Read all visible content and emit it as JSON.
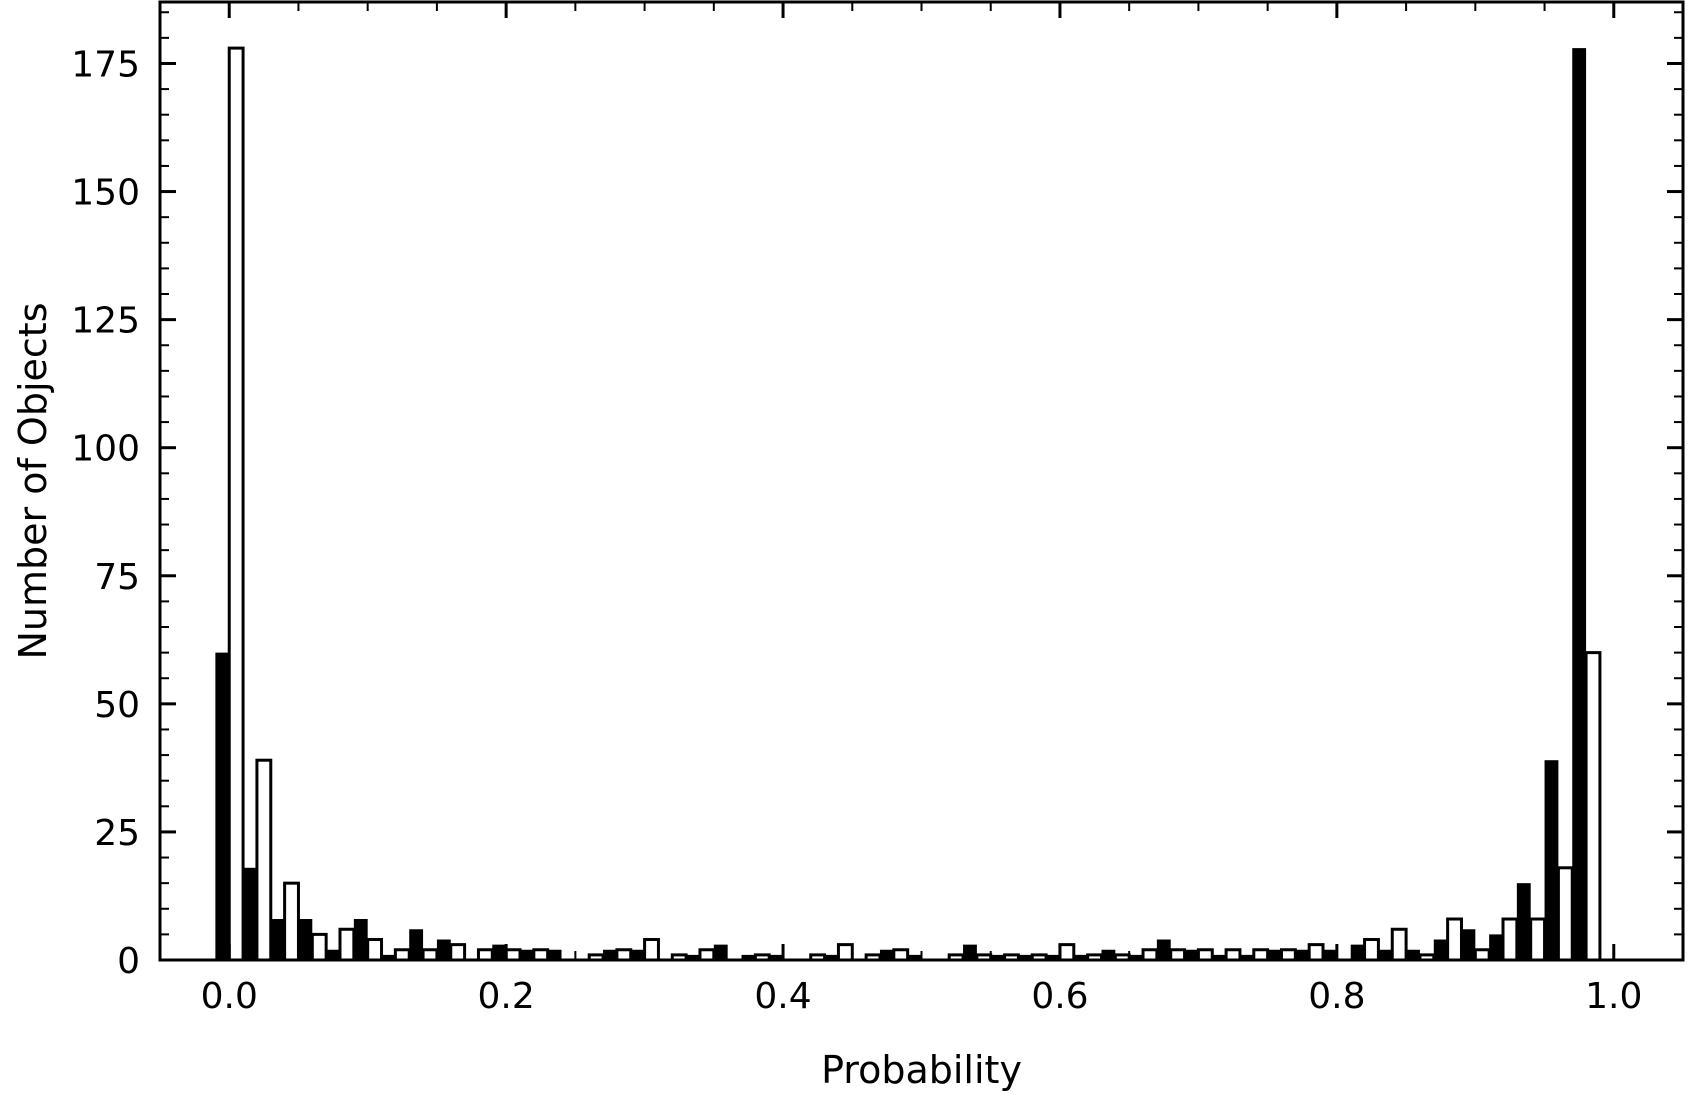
{
  "chart_data": {
    "type": "bar",
    "title": "",
    "xlabel": "Probability",
    "ylabel": "Number of Objects",
    "xlim": [
      -0.05,
      1.05
    ],
    "ylim": [
      0,
      187
    ],
    "bin_width": 0.02,
    "x_ticks": [
      0.0,
      0.2,
      0.4,
      0.6,
      0.8,
      1.0
    ],
    "x_tick_labels": [
      "0.0",
      "0.2",
      "0.4",
      "0.6",
      "0.8",
      "1.0"
    ],
    "y_ticks": [
      0,
      25,
      50,
      75,
      100,
      125,
      150,
      175
    ],
    "y_tick_labels": [
      "0",
      "25",
      "50",
      "75",
      "100",
      "125",
      "150",
      "175"
    ],
    "x": [
      0.0,
      0.02,
      0.04,
      0.06,
      0.08,
      0.1,
      0.12,
      0.14,
      0.16,
      0.18,
      0.2,
      0.22,
      0.24,
      0.26,
      0.28,
      0.3,
      0.32,
      0.34,
      0.36,
      0.38,
      0.4,
      0.42,
      0.44,
      0.46,
      0.48,
      0.5,
      0.52,
      0.54,
      0.56,
      0.58,
      0.6,
      0.62,
      0.64,
      0.66,
      0.68,
      0.7,
      0.72,
      0.74,
      0.76,
      0.78,
      0.8,
      0.82,
      0.84,
      0.86,
      0.88,
      0.9,
      0.92,
      0.94,
      0.96,
      0.98
    ],
    "series": [
      {
        "name": "filled",
        "fill": "#000000",
        "offset": -0.005,
        "values": [
          60,
          18,
          8,
          8,
          2,
          8,
          1,
          6,
          4,
          0,
          3,
          2,
          2,
          0,
          2,
          2,
          0,
          1,
          3,
          1,
          1,
          0,
          1,
          0,
          2,
          1,
          0,
          3,
          1,
          1,
          1,
          1,
          2,
          1,
          4,
          2,
          1,
          1,
          2,
          2,
          2,
          3,
          2,
          2,
          4,
          6,
          5,
          15,
          39,
          178
        ]
      },
      {
        "name": "open",
        "fill": "#ffffff",
        "stroke": "#000000",
        "offset": 0.005,
        "values": [
          178,
          39,
          15,
          5,
          6,
          4,
          2,
          2,
          3,
          2,
          2,
          2,
          0,
          1,
          2,
          4,
          1,
          2,
          0,
          1,
          0,
          1,
          3,
          1,
          2,
          0,
          1,
          1,
          1,
          1,
          3,
          1,
          1,
          2,
          2,
          2,
          2,
          2,
          2,
          3,
          0,
          4,
          6,
          1,
          8,
          2,
          8,
          8,
          18,
          60
        ]
      }
    ]
  }
}
